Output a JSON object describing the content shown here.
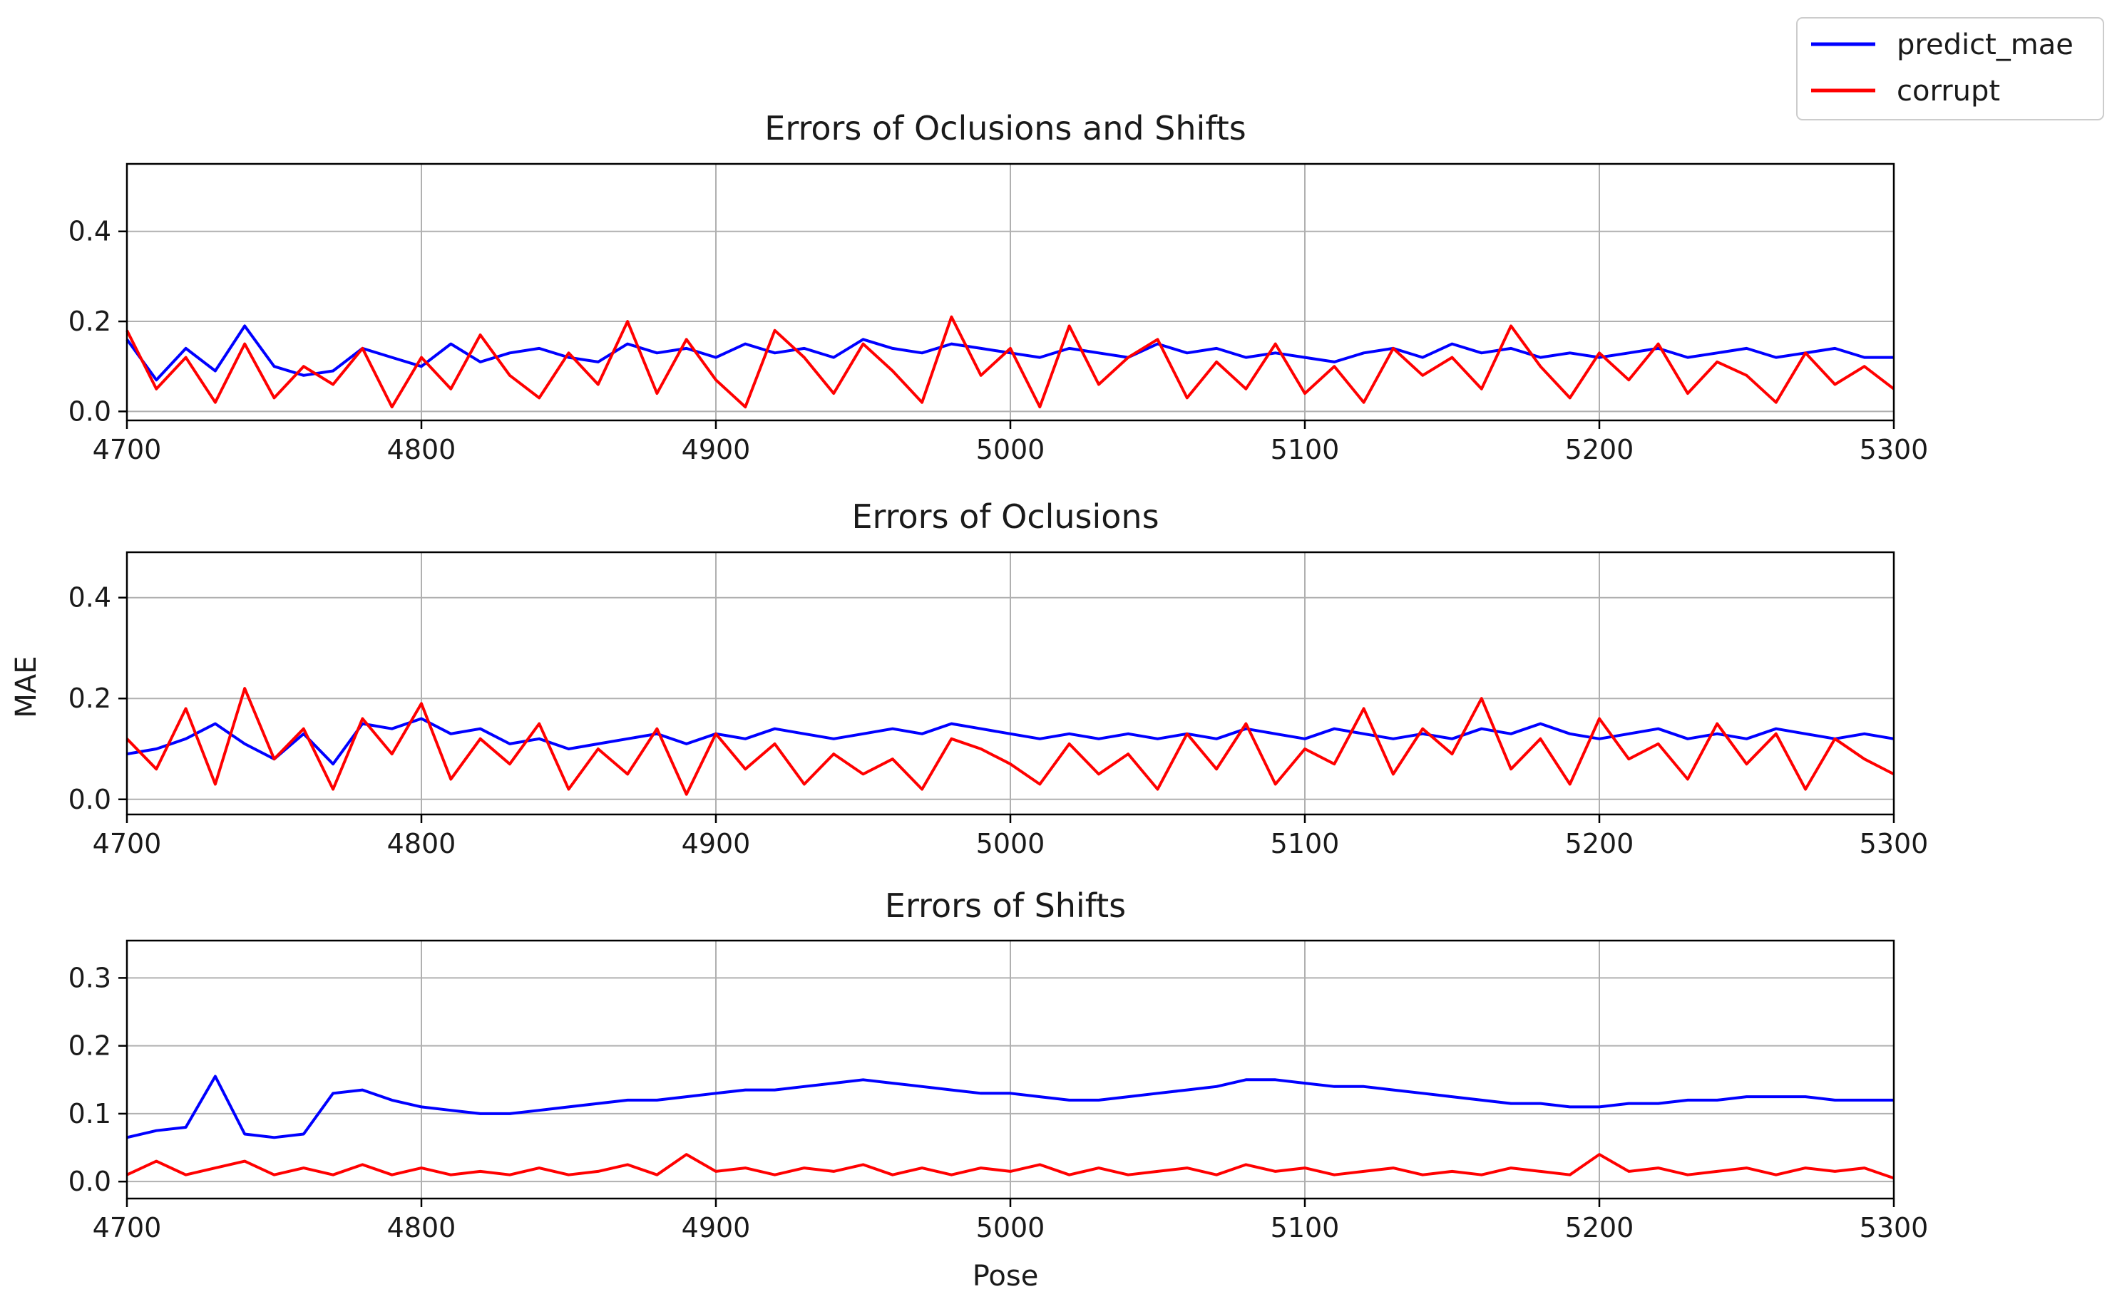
{
  "figure": {
    "ylabel_shared": "MAE",
    "legend": {
      "placement": "top-right",
      "entries": [
        {
          "label": "predict_mae",
          "color": "#0000ff"
        },
        {
          "label": "corrupt",
          "color": "#ff0000"
        }
      ]
    }
  },
  "chart_data": [
    {
      "type": "line",
      "title": "Errors of Oclusions and Shifts",
      "xlabel": "",
      "ylabel": "",
      "xlim": [
        4700,
        5300
      ],
      "ylim": [
        -0.02,
        0.55
      ],
      "xticks": [
        4700,
        4800,
        4900,
        5000,
        5100,
        5200,
        5300
      ],
      "yticks": [
        0.0,
        0.2,
        0.4
      ],
      "ytick_labels": [
        "0.0",
        "0.2",
        "0.4"
      ],
      "grid": true,
      "series": [
        {
          "name": "predict_mae",
          "color": "#0000ff",
          "x_start": 4700,
          "x_step": 10,
          "values": [
            0.16,
            0.07,
            0.14,
            0.09,
            0.19,
            0.1,
            0.08,
            0.09,
            0.14,
            0.12,
            0.1,
            0.15,
            0.11,
            0.13,
            0.14,
            0.12,
            0.11,
            0.15,
            0.13,
            0.14,
            0.12,
            0.15,
            0.13,
            0.14,
            0.12,
            0.16,
            0.14,
            0.13,
            0.15,
            0.14,
            0.13,
            0.12,
            0.14,
            0.13,
            0.12,
            0.15,
            0.13,
            0.14,
            0.12,
            0.13,
            0.12,
            0.11,
            0.13,
            0.14,
            0.12,
            0.15,
            0.13,
            0.14,
            0.12,
            0.13,
            0.12,
            0.13,
            0.14,
            0.12,
            0.13,
            0.14,
            0.12,
            0.13,
            0.14,
            0.12,
            0.12
          ]
        },
        {
          "name": "corrupt",
          "color": "#ff0000",
          "x_start": 4700,
          "x_step": 10,
          "values": [
            0.18,
            0.05,
            0.12,
            0.02,
            0.15,
            0.03,
            0.1,
            0.06,
            0.14,
            0.01,
            0.12,
            0.05,
            0.17,
            0.08,
            0.03,
            0.13,
            0.06,
            0.2,
            0.04,
            0.16,
            0.07,
            0.01,
            0.18,
            0.12,
            0.04,
            0.15,
            0.09,
            0.02,
            0.21,
            0.08,
            0.14,
            0.01,
            0.19,
            0.06,
            0.12,
            0.16,
            0.03,
            0.11,
            0.05,
            0.15,
            0.04,
            0.1,
            0.02,
            0.14,
            0.08,
            0.12,
            0.05,
            0.19,
            0.1,
            0.03,
            0.13,
            0.07,
            0.15,
            0.04,
            0.11,
            0.08,
            0.02,
            0.13,
            0.06,
            0.1,
            0.05
          ]
        }
      ]
    },
    {
      "type": "line",
      "title": "Errors of Oclusions",
      "xlabel": "",
      "ylabel": "MAE",
      "xlim": [
        4700,
        5300
      ],
      "ylim": [
        -0.03,
        0.49
      ],
      "xticks": [
        4700,
        4800,
        4900,
        5000,
        5100,
        5200,
        5300
      ],
      "yticks": [
        0.0,
        0.2,
        0.4
      ],
      "ytick_labels": [
        "0.0",
        "0.2",
        "0.4"
      ],
      "grid": true,
      "series": [
        {
          "name": "predict_mae",
          "color": "#0000ff",
          "x_start": 4700,
          "x_step": 10,
          "values": [
            0.09,
            0.1,
            0.12,
            0.15,
            0.11,
            0.08,
            0.13,
            0.07,
            0.15,
            0.14,
            0.16,
            0.13,
            0.14,
            0.11,
            0.12,
            0.1,
            0.11,
            0.12,
            0.13,
            0.11,
            0.13,
            0.12,
            0.14,
            0.13,
            0.12,
            0.13,
            0.14,
            0.13,
            0.15,
            0.14,
            0.13,
            0.12,
            0.13,
            0.12,
            0.13,
            0.12,
            0.13,
            0.12,
            0.14,
            0.13,
            0.12,
            0.14,
            0.13,
            0.12,
            0.13,
            0.12,
            0.14,
            0.13,
            0.15,
            0.13,
            0.12,
            0.13,
            0.14,
            0.12,
            0.13,
            0.12,
            0.14,
            0.13,
            0.12,
            0.13,
            0.12
          ]
        },
        {
          "name": "corrupt",
          "color": "#ff0000",
          "x_start": 4700,
          "x_step": 10,
          "values": [
            0.12,
            0.06,
            0.18,
            0.03,
            0.22,
            0.08,
            0.14,
            0.02,
            0.16,
            0.09,
            0.19,
            0.04,
            0.12,
            0.07,
            0.15,
            0.02,
            0.1,
            0.05,
            0.14,
            0.01,
            0.13,
            0.06,
            0.11,
            0.03,
            0.09,
            0.05,
            0.08,
            0.02,
            0.12,
            0.1,
            0.07,
            0.03,
            0.11,
            0.05,
            0.09,
            0.02,
            0.13,
            0.06,
            0.15,
            0.03,
            0.1,
            0.07,
            0.18,
            0.05,
            0.14,
            0.09,
            0.2,
            0.06,
            0.12,
            0.03,
            0.16,
            0.08,
            0.11,
            0.04,
            0.15,
            0.07,
            0.13,
            0.02,
            0.12,
            0.08,
            0.05
          ]
        }
      ]
    },
    {
      "type": "line",
      "title": "Errors of Shifts",
      "xlabel": "Pose",
      "ylabel": "",
      "xlim": [
        4700,
        5300
      ],
      "ylim": [
        -0.025,
        0.355
      ],
      "xticks": [
        4700,
        4800,
        4900,
        5000,
        5100,
        5200,
        5300
      ],
      "yticks": [
        0.0,
        0.1,
        0.2,
        0.3
      ],
      "ytick_labels": [
        "0.0",
        "0.1",
        "0.2",
        "0.3"
      ],
      "grid": true,
      "series": [
        {
          "name": "predict_mae",
          "color": "#0000ff",
          "x_start": 4700,
          "x_step": 10,
          "values": [
            0.065,
            0.075,
            0.08,
            0.155,
            0.07,
            0.065,
            0.07,
            0.13,
            0.135,
            0.12,
            0.11,
            0.105,
            0.1,
            0.1,
            0.105,
            0.11,
            0.115,
            0.12,
            0.12,
            0.125,
            0.13,
            0.135,
            0.135,
            0.14,
            0.145,
            0.15,
            0.145,
            0.14,
            0.135,
            0.13,
            0.13,
            0.125,
            0.12,
            0.12,
            0.125,
            0.13,
            0.135,
            0.14,
            0.15,
            0.15,
            0.145,
            0.14,
            0.14,
            0.135,
            0.13,
            0.125,
            0.12,
            0.115,
            0.115,
            0.11,
            0.11,
            0.115,
            0.115,
            0.12,
            0.12,
            0.125,
            0.125,
            0.125,
            0.12,
            0.12,
            0.12
          ]
        },
        {
          "name": "corrupt",
          "color": "#ff0000",
          "x_start": 4700,
          "x_step": 10,
          "values": [
            0.01,
            0.03,
            0.01,
            0.02,
            0.03,
            0.01,
            0.02,
            0.01,
            0.025,
            0.01,
            0.02,
            0.01,
            0.015,
            0.01,
            0.02,
            0.01,
            0.015,
            0.025,
            0.01,
            0.04,
            0.015,
            0.02,
            0.01,
            0.02,
            0.015,
            0.025,
            0.01,
            0.02,
            0.01,
            0.02,
            0.015,
            0.025,
            0.01,
            0.02,
            0.01,
            0.015,
            0.02,
            0.01,
            0.025,
            0.015,
            0.02,
            0.01,
            0.015,
            0.02,
            0.01,
            0.015,
            0.01,
            0.02,
            0.015,
            0.01,
            0.04,
            0.015,
            0.02,
            0.01,
            0.015,
            0.02,
            0.01,
            0.02,
            0.015,
            0.02,
            0.005
          ]
        }
      ]
    }
  ]
}
